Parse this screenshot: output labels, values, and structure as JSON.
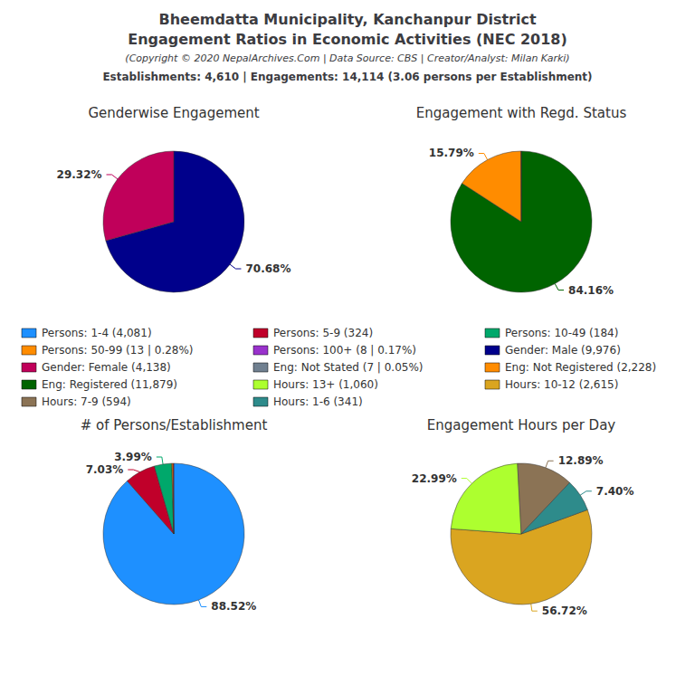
{
  "title": [
    "Bheemdatta Municipality, Kanchanpur District",
    "Engagement Ratios in Economic Activities (NEC 2018)"
  ],
  "subtitle": [
    "(Copyright © 2020 NepalArchives.Com | Data Source: CBS | Creator/Analyst: Milan Karki)",
    "Establishments: 4,610 | Engagements: 14,114 (3.06 persons per Establishment)"
  ],
  "annotations": [
    {
      "text": "Persons: 1-4 (4,081)",
      "color": "#1E90FF"
    },
    {
      "text": "Persons: 5-9 (324)",
      "color": "#C0002A"
    },
    {
      "text": "Persons: 10-49 (184)",
      "color": "#00A86B"
    },
    {
      "text": "Persons: 50-99 (13 | 0.28%)",
      "color": "#FF8C00"
    },
    {
      "text": "Persons: 100+ (8 | 0.17%)",
      "color": "#9932CC"
    },
    {
      "text": "Gender: Male (9,976)",
      "color": "#00008B"
    },
    {
      "text": "Gender: Female (4,138)",
      "color": "#C0005A"
    },
    {
      "text": "Eng: Not Stated (7 | 0.05%)",
      "color": "#708090"
    },
    {
      "text": "Eng: Not Registered (2,228)",
      "color": "#FF8C00"
    },
    {
      "text": "Eng: Registered (11,879)",
      "color": "#006400"
    },
    {
      "text": "Hours: 13+ (1,060)",
      "color": "#ADFF2F"
    },
    {
      "text": "Hours: 10-12 (2,615)",
      "color": "#DAA520"
    },
    {
      "text": "Hours: 7-9 (594)",
      "color": "#8B7355"
    },
    {
      "text": "Hours: 1-6 (341)",
      "color": "#2E8B8B"
    }
  ],
  "chart_data": [
    {
      "type": "pie",
      "title": "Genderwise Engagement",
      "values": [
        70.68,
        29.32
      ],
      "value_labels": [
        "70.68%",
        "29.32%"
      ],
      "colors": [
        "#00008B",
        "#C0005A"
      ],
      "data_labels": true
    },
    {
      "type": "pie",
      "title": "Engagement with Regd. Status",
      "values": [
        84.16,
        15.79,
        0.05
      ],
      "value_labels": [
        "84.16%",
        "15.79%",
        null
      ],
      "colors": [
        "#006400",
        "#FF8C00",
        "#8B0000"
      ],
      "data_labels": true
    },
    {
      "type": "pie",
      "title": "# of Persons/Establishment",
      "values": [
        88.52,
        7.03,
        3.99,
        0.28,
        0.17
      ],
      "value_labels": [
        "88.52%",
        "7.03%",
        "3.99%",
        null,
        null
      ],
      "colors": [
        "#1E90FF",
        "#C0002A",
        "#00A86B",
        "#FF8C00",
        "#FF0000"
      ],
      "data_labels": true
    },
    {
      "type": "pie",
      "title": "Engagement Hours per Day",
      "values": [
        56.72,
        22.99,
        12.89,
        7.4
      ],
      "value_labels": [
        "56.72%",
        "22.99%",
        "12.89%",
        "7.40%"
      ],
      "colors": [
        "#DAA520",
        "#ADFF2F",
        "#8B7355",
        "#2E8B8B"
      ],
      "data_labels": true
    }
  ]
}
